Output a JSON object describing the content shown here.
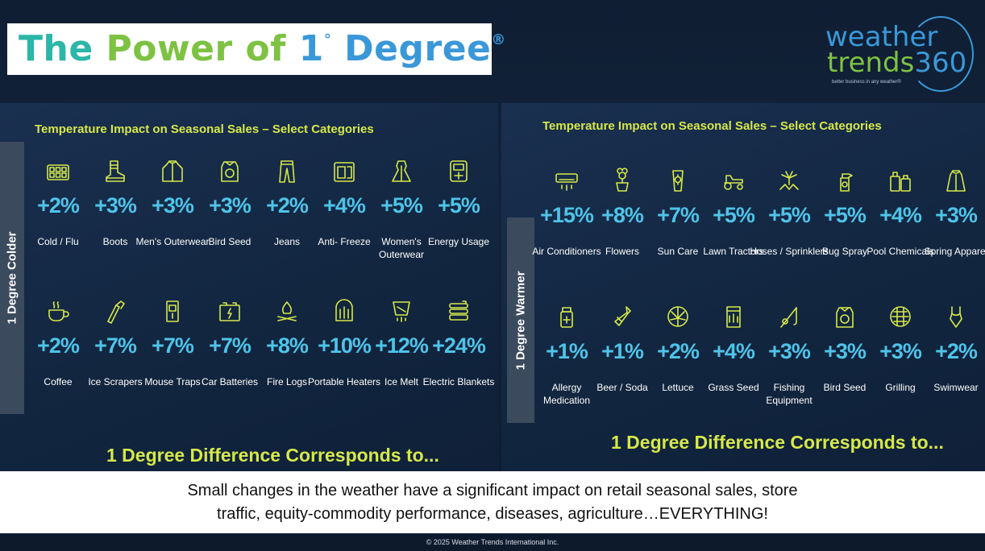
{
  "title": {
    "part1": "The ",
    "part2": "Power of ",
    "part3": "1",
    "degree": "°",
    "part4": " Degree",
    "reg": "®"
  },
  "logo": {
    "line1": "weather",
    "line2a": "trends",
    "line2b": "360",
    "tagline": "better business in any weather®"
  },
  "colder": {
    "side_label": "1 Degree Colder",
    "heading": "Temperature Impact on Seasonal Sales – Select Categories",
    "footer": "1 Degree Difference Corresponds to...",
    "items": [
      {
        "icon": "medicine-pack-icon",
        "value": "+2%",
        "label": "Cold / Flu"
      },
      {
        "icon": "boot-icon",
        "value": "+3%",
        "label": "Boots"
      },
      {
        "icon": "jacket-icon",
        "value": "+3%",
        "label": "Men's Outerwear"
      },
      {
        "icon": "seed-bag-icon",
        "value": "+3%",
        "label": "Bird Seed"
      },
      {
        "icon": "jeans-icon",
        "value": "+2%",
        "label": "Jeans"
      },
      {
        "icon": "antifreeze-jug-icon",
        "value": "+4%",
        "label": "Anti- Freeze"
      },
      {
        "icon": "coat-icon",
        "value": "+5%",
        "label": "Women's Outerwear"
      },
      {
        "icon": "meter-icon",
        "value": "+5%",
        "label": "Energy Usage"
      },
      {
        "icon": "coffee-cup-icon",
        "value": "+2%",
        "label": "Coffee"
      },
      {
        "icon": "ice-scraper-icon",
        "value": "+7%",
        "label": "Ice Scrapers"
      },
      {
        "icon": "mouse-trap-icon",
        "value": "+7%",
        "label": "Mouse Traps"
      },
      {
        "icon": "car-battery-icon",
        "value": "+7%",
        "label": "Car Batteries"
      },
      {
        "icon": "campfire-icon",
        "value": "+8%",
        "label": "Fire Logs"
      },
      {
        "icon": "heater-icon",
        "value": "+10%",
        "label": "Portable Heaters"
      },
      {
        "icon": "ice-melt-bag-icon",
        "value": "+12%",
        "label": "Ice Melt"
      },
      {
        "icon": "blanket-icon",
        "value": "+24%",
        "label": "Electric Blankets"
      }
    ]
  },
  "warmer": {
    "side_label": "1 Degree Warmer",
    "heading": "Temperature Impact on Seasonal Sales – Select Categories",
    "footer": "1 Degree Difference Corresponds to...",
    "items": [
      {
        "icon": "air-conditioner-icon",
        "value": "+15%",
        "label": "Air Conditioners"
      },
      {
        "icon": "flower-pot-icon",
        "value": "+8%",
        "label": "Flowers"
      },
      {
        "icon": "sunscreen-icon",
        "value": "+7%",
        "label": "Sun Care"
      },
      {
        "icon": "lawn-tractor-icon",
        "value": "+5%",
        "label": "Lawn Tractors"
      },
      {
        "icon": "sprinkler-icon",
        "value": "+5%",
        "label": "Hoses / Sprinklers"
      },
      {
        "icon": "spray-bottle-icon",
        "value": "+5%",
        "label": "Bug Spray"
      },
      {
        "icon": "chemical-bottles-icon",
        "value": "+4%",
        "label": "Pool Chemicals"
      },
      {
        "icon": "raincoat-icon",
        "value": "+3%",
        "label": "Spring Apparel"
      },
      {
        "icon": "medicine-bottle-icon",
        "value": "+1%",
        "label": "Allergy Medication"
      },
      {
        "icon": "bottle-icon",
        "value": "+1%",
        "label": "Beer / Soda"
      },
      {
        "icon": "lettuce-icon",
        "value": "+2%",
        "label": "Lettuce"
      },
      {
        "icon": "grass-seed-bag-icon",
        "value": "+4%",
        "label": "Grass Seed"
      },
      {
        "icon": "fishing-rod-icon",
        "value": "+3%",
        "label": "Fishing Equipment"
      },
      {
        "icon": "seed-bag-icon",
        "value": "+3%",
        "label": "Bird Seed"
      },
      {
        "icon": "grill-icon",
        "value": "+3%",
        "label": "Grilling"
      },
      {
        "icon": "swimsuit-icon",
        "value": "+2%",
        "label": "Swimwear"
      }
    ]
  },
  "bottom": {
    "line1": "Small changes in the weather have a significant impact on retail seasonal sales, store",
    "line2": "traffic, equity-commodity performance, diseases, agriculture…EVERYTHING!"
  },
  "copyright": "© 2025 Weather Trends International Inc.",
  "colors": {
    "heading": "#d6e84a",
    "value": "#4fc3e8",
    "icon": "#d6e84a",
    "title_teal": "#2bb6a8",
    "title_green": "#7dc242",
    "title_blue": "#3a98d8"
  }
}
